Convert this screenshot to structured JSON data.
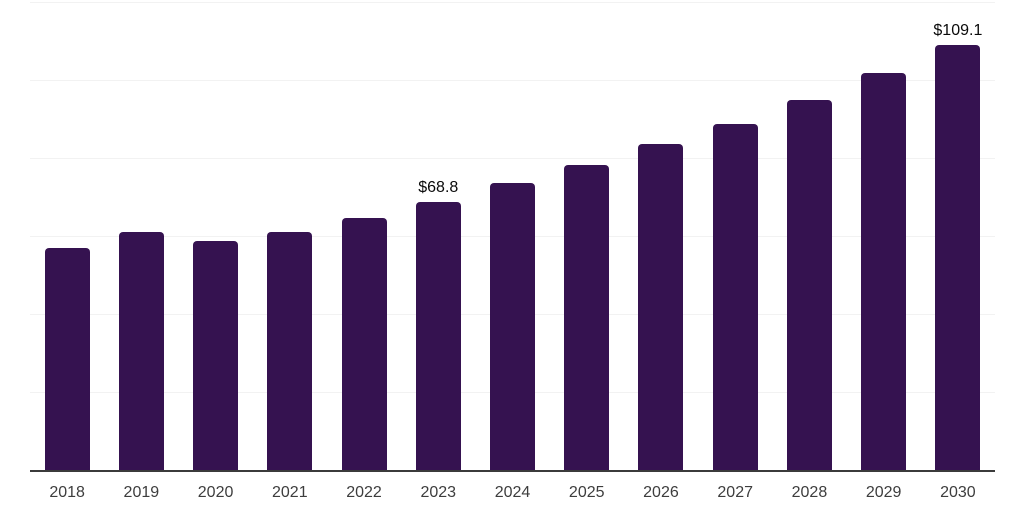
{
  "chart_data": {
    "type": "bar",
    "title": "",
    "xlabel": "",
    "ylabel": "",
    "categories": [
      "2018",
      "2019",
      "2020",
      "2021",
      "2022",
      "2023",
      "2024",
      "2025",
      "2026",
      "2027",
      "2028",
      "2029",
      "2030"
    ],
    "values": [
      57.0,
      61.0,
      58.8,
      60.9,
      64.6,
      68.8,
      73.6,
      78.3,
      83.5,
      88.8,
      95.0,
      101.9,
      109.1
    ],
    "data_labels": [
      "",
      "",
      "",
      "",
      "",
      "$68.8",
      "",
      "",
      "",
      "",
      "",
      "",
      "$109.1"
    ],
    "ylim": [
      0,
      120
    ],
    "grid_step": 20,
    "grid": true,
    "legend": false,
    "colors": {
      "bar": "#351250",
      "gridline": "#f2f2f2",
      "axis_line": "#3b3b3b",
      "tick_label": "#3d3d3d",
      "data_label": "#0a0a0a",
      "background": "#ffffff"
    }
  }
}
